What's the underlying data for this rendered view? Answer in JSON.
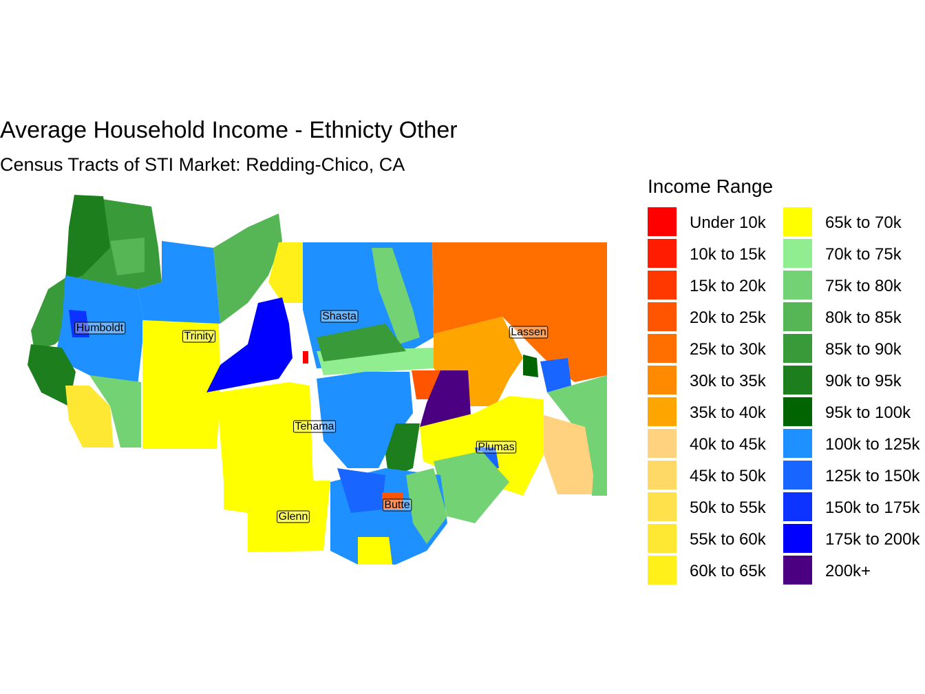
{
  "title": "Average Household Income - Ethnicty Other",
  "subtitle": "Census Tracts of STI Market: Redding-Chico, CA",
  "legend": {
    "title": "Income Range",
    "items": [
      {
        "label": "Under 10k",
        "color": "#ff0000"
      },
      {
        "label": "10k to 15k",
        "color": "#ff1c00"
      },
      {
        "label": "15k to 20k",
        "color": "#ff3800"
      },
      {
        "label": "20k to 25k",
        "color": "#ff5500"
      },
      {
        "label": "25k to 30k",
        "color": "#ff6f00"
      },
      {
        "label": "30k to 35k",
        "color": "#ff8a00"
      },
      {
        "label": "35k to 40k",
        "color": "#ffa500"
      },
      {
        "label": "40k to 45k",
        "color": "#ffd27f"
      },
      {
        "label": "45k to 50k",
        "color": "#ffd966"
      },
      {
        "label": "50k to 55k",
        "color": "#ffe14c"
      },
      {
        "label": "55k to 60k",
        "color": "#ffe833"
      },
      {
        "label": "60k to 65k",
        "color": "#fff019"
      },
      {
        "label": "65k to 70k",
        "color": "#ffff00"
      },
      {
        "label": "70k to 75k",
        "color": "#90ee90"
      },
      {
        "label": "75k to 80k",
        "color": "#73d273"
      },
      {
        "label": "80k to 85k",
        "color": "#56b656"
      },
      {
        "label": "85k to 90k",
        "color": "#399a39"
      },
      {
        "label": "90k to 95k",
        "color": "#1c7e1c"
      },
      {
        "label": "95k to 100k",
        "color": "#006400"
      },
      {
        "label": "100k to 125k",
        "color": "#1e90ff"
      },
      {
        "label": "125k to 150k",
        "color": "#1866ff"
      },
      {
        "label": "150k to 175k",
        "color": "#0c33ff"
      },
      {
        "label": "175k to 200k",
        "color": "#0000ff"
      },
      {
        "label": "200k+",
        "color": "#4b0082"
      }
    ]
  },
  "counties": [
    {
      "label": "Humboldt"
    },
    {
      "label": "Trinity"
    },
    {
      "label": "Shasta"
    },
    {
      "label": "Lassen"
    },
    {
      "label": "Tehama"
    },
    {
      "label": "Plumas"
    },
    {
      "label": "Glenn"
    },
    {
      "label": "Butte"
    }
  ]
}
